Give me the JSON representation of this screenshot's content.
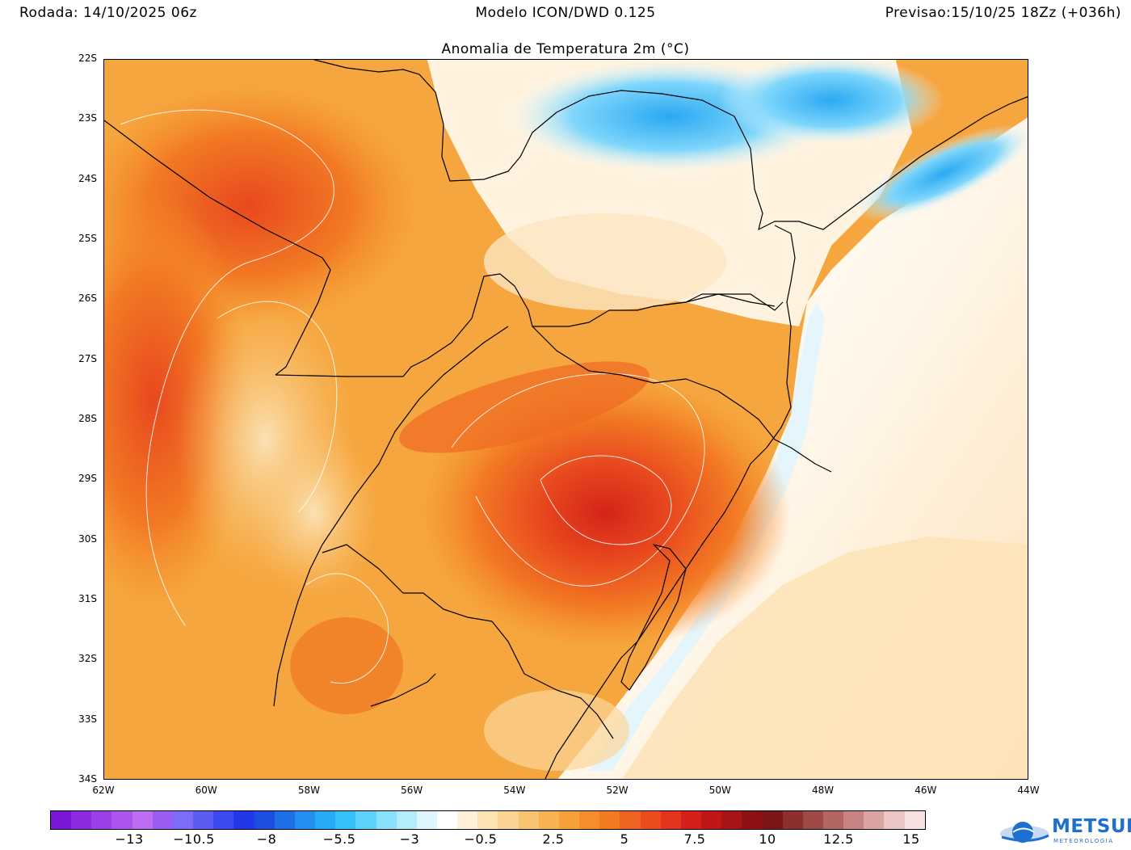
{
  "header": {
    "run": "Rodada: 14/10/2025 06z",
    "model": "Modelo ICON/DWD 0.125",
    "forecast": "Previsao:15/10/25 18Zz (+036h)"
  },
  "map": {
    "title": "Anomalia de Temperatura 2m (°C)",
    "lat_labels": [
      "22S",
      "23S",
      "24S",
      "25S",
      "26S",
      "27S",
      "28S",
      "29S",
      "30S",
      "31S",
      "32S",
      "33S",
      "34S"
    ],
    "lon_labels": [
      "62W",
      "60W",
      "58W",
      "56W",
      "54W",
      "52W",
      "50W",
      "48W",
      "46W",
      "44W"
    ]
  },
  "colorbar": {
    "colors": [
      "#7a16d6",
      "#8a2be2",
      "#9b3fe8",
      "#ac55ec",
      "#bd6df0",
      "#9b5cf2",
      "#7c6cf6",
      "#5b5cf2",
      "#3a4cf0",
      "#2237e8",
      "#1c4fe0",
      "#1f6fe6",
      "#238ff0",
      "#27aaf5",
      "#36c1fa",
      "#5fd2fb",
      "#8ae1fc",
      "#b4ecfd",
      "#dff6fe",
      "#ffffff",
      "#fff0d8",
      "#fde3b6",
      "#fbd494",
      "#f9c472",
      "#f7b352",
      "#f6a03a",
      "#f48e2c",
      "#f27b22",
      "#ef6420",
      "#ea4c1e",
      "#e3351c",
      "#d41f1a",
      "#bf1718",
      "#a61416",
      "#8e1214",
      "#7a1616",
      "#8c2f2e",
      "#a04a48",
      "#b46664",
      "#c78482",
      "#d9a4a2",
      "#ebc6c4",
      "#f7e2e0"
    ],
    "labels": [
      "−13",
      "−10.5",
      "−8",
      "−5.5",
      "−3",
      "−0.5",
      "2.5",
      "5",
      "7.5",
      "10",
      "12.5",
      "15"
    ]
  },
  "logo": {
    "name": "METSUL",
    "sub": "METEOROLOGIA"
  }
}
